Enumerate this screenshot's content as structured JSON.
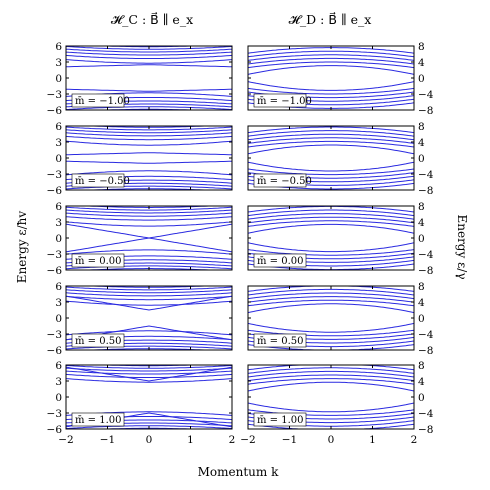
{
  "titles": {
    "left": "𝓗_C : B⃗ ∥ e_x",
    "right": "𝓗_D : B⃗ ∥ e_x"
  },
  "axis_labels": {
    "x": "Momentum k",
    "y_left": "Energy ε/ħv",
    "y_right": "Energy ε/γ"
  },
  "colors": {
    "line": "#2a2ae0",
    "axes": "#000000"
  },
  "chart_data": {
    "type": "line",
    "layout": "grid of 5 rows by 2 columns, shared x axis",
    "grid": false,
    "xlim": [
      -2,
      2
    ],
    "x_ticks": [
      "−2",
      "−1",
      "0",
      "1",
      "2"
    ],
    "left_column": {
      "title": "𝓗_C : B⃗ ∥ e_x",
      "ylim": [
        -6,
        6
      ],
      "y_ticks": [
        "6",
        "3",
        "0",
        "−3",
        "−6"
      ]
    },
    "right_column": {
      "title": "𝓗_D : B⃗ ∥ e_x",
      "ylim": [
        -8,
        8
      ],
      "y_ticks": [
        "8",
        "4",
        "0",
        "−4",
        "−8"
      ]
    },
    "rows": [
      {
        "m_label": "m̄ = −1.00",
        "m": -1.0
      },
      {
        "m_label": "m̄ = −0.50",
        "m": -0.5
      },
      {
        "m_label": "m̄ = 0.00",
        "m": 0.0
      },
      {
        "m_label": "m̄ = 0.50",
        "m": 0.5
      },
      {
        "m_label": "m̄ = 1.00",
        "m": 1.0
      }
    ],
    "series_description": "Each panel shows Landau-level-like energy bands vs momentum k; left panels gap closes as m̄ increases, right panels show parabolic bands."
  }
}
